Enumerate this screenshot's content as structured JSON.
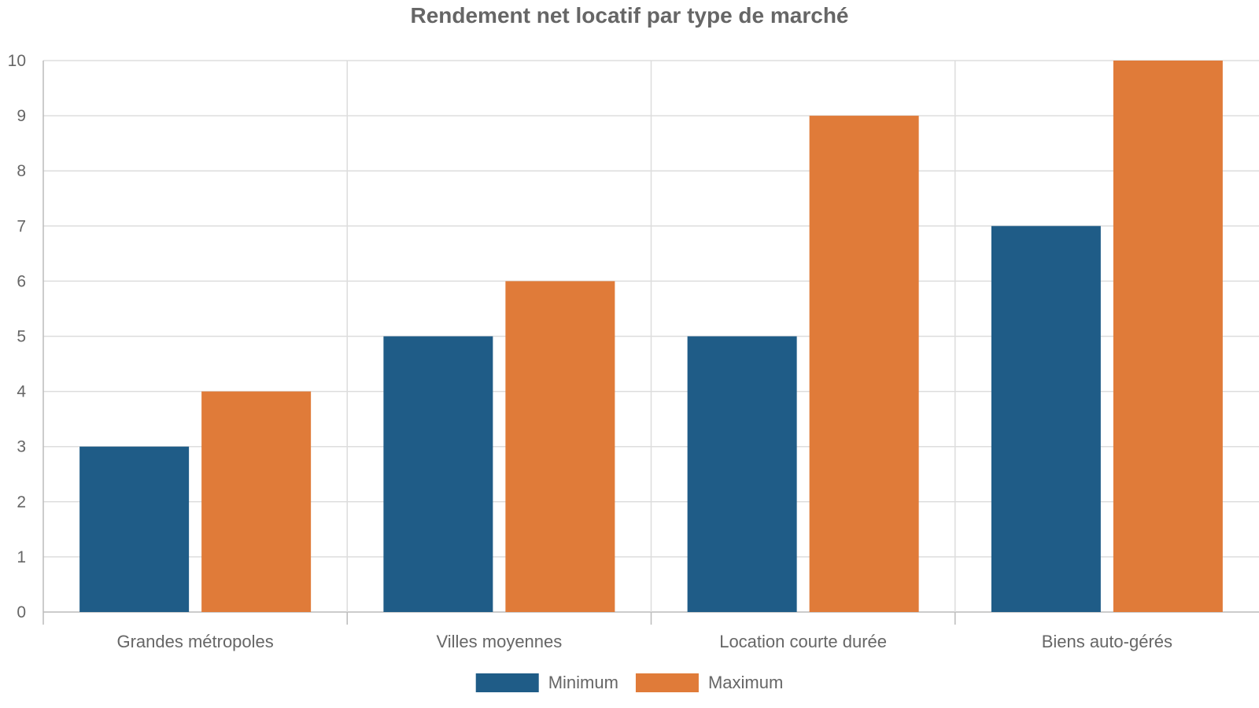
{
  "chart_data": {
    "type": "bar",
    "title": "Rendement net locatif par type de marché",
    "xlabel": "",
    "ylabel": "",
    "categories": [
      "Grandes métropoles",
      "Villes moyennes",
      "Location courte durée",
      "Biens auto-gérés"
    ],
    "series": [
      {
        "name": "Minimum",
        "values": [
          3,
          5,
          5,
          7
        ],
        "color": "#1f5c87"
      },
      {
        "name": "Maximum",
        "values": [
          4,
          6,
          9,
          10
        ],
        "color": "#e07b39"
      }
    ],
    "ylim": [
      0,
      10
    ],
    "yticks": [
      "0",
      "1",
      "2",
      "3",
      "4",
      "5",
      "6",
      "7",
      "8",
      "9",
      "10"
    ],
    "grid": true,
    "legend_position": "bottom-center",
    "colors": {
      "grid": "#dddddd",
      "axis": "#bbbbbb",
      "text": "#666666"
    }
  }
}
